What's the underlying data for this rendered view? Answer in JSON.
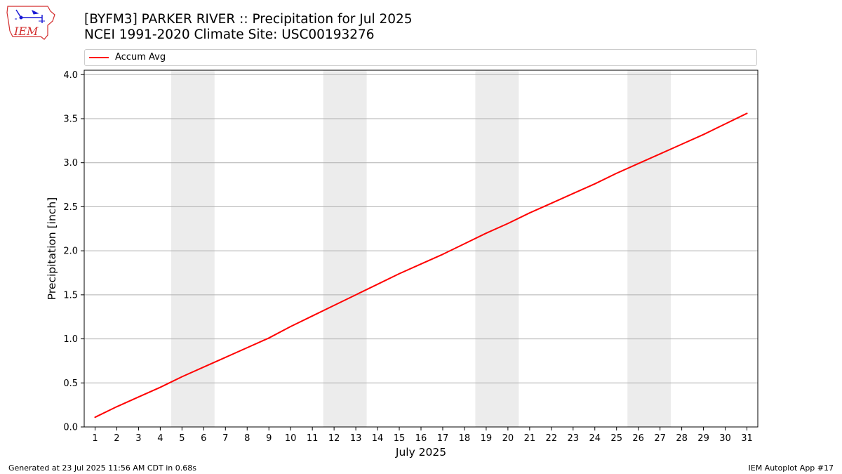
{
  "header": {
    "title_line1": "[BYFM3] PARKER RIVER :: Precipitation for Jul 2025",
    "title_line2": "NCEI 1991-2020 Climate Site: USC00193276",
    "logo_text": "IEM"
  },
  "legend": {
    "label": "Accum Avg"
  },
  "footer": {
    "left": "Generated at 23 Jul 2025 11:56 AM CDT in 0.68s",
    "right": "IEM Autoplot App #17"
  },
  "colors": {
    "series": "#ff0000",
    "weekend_band": "#ececec",
    "grid": "#b0b0b0",
    "logo_red": "#d32f2f",
    "logo_blue": "#1a1ad6"
  },
  "chart_data": {
    "type": "line",
    "title": "[BYFM3] PARKER RIVER :: Precipitation for Jul 2025",
    "subtitle": "NCEI 1991-2020 Climate Site: USC00193276",
    "xlabel": "July 2025",
    "ylabel": "Precipitation [inch]",
    "xlim": [
      0.5,
      31.5
    ],
    "ylim": [
      0,
      4.05
    ],
    "x_ticks": [
      1,
      2,
      3,
      4,
      5,
      6,
      7,
      8,
      9,
      10,
      11,
      12,
      13,
      14,
      15,
      16,
      17,
      18,
      19,
      20,
      21,
      22,
      23,
      24,
      25,
      26,
      27,
      28,
      29,
      30,
      31
    ],
    "y_ticks": [
      0.0,
      0.5,
      1.0,
      1.5,
      2.0,
      2.5,
      3.0,
      3.5,
      4.0
    ],
    "y_tick_labels": [
      "0.0",
      "0.5",
      "1.0",
      "1.5",
      "2.0",
      "2.5",
      "3.0",
      "3.5",
      "4.0"
    ],
    "grid": "y",
    "legend_position": "top",
    "weekend_bands": [
      [
        5,
        6
      ],
      [
        12,
        13
      ],
      [
        19,
        20
      ],
      [
        26,
        27
      ]
    ],
    "series": [
      {
        "name": "Accum Avg",
        "x": [
          1,
          2,
          3,
          4,
          5,
          6,
          7,
          8,
          9,
          10,
          11,
          12,
          13,
          14,
          15,
          16,
          17,
          18,
          19,
          20,
          21,
          22,
          23,
          24,
          25,
          26,
          27,
          28,
          29,
          30,
          31
        ],
        "values": [
          0.11,
          0.23,
          0.34,
          0.45,
          0.57,
          0.68,
          0.79,
          0.9,
          1.01,
          1.14,
          1.26,
          1.38,
          1.5,
          1.62,
          1.74,
          1.85,
          1.96,
          2.08,
          2.2,
          2.31,
          2.43,
          2.54,
          2.65,
          2.76,
          2.88,
          2.99,
          3.1,
          3.21,
          3.32,
          3.44,
          3.56
        ]
      }
    ]
  }
}
